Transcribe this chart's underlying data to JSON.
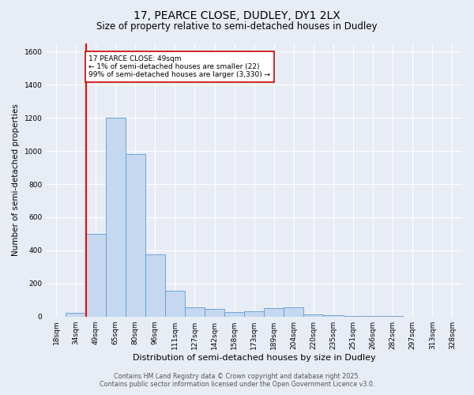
{
  "title1": "17, PEARCE CLOSE, DUDLEY, DY1 2LX",
  "title2": "Size of property relative to semi-detached houses in Dudley",
  "xlabel": "Distribution of semi-detached houses by size in Dudley",
  "ylabel": "Number of semi-detached properties",
  "categories": [
    "18sqm",
    "34sqm",
    "49sqm",
    "65sqm",
    "80sqm",
    "96sqm",
    "111sqm",
    "127sqm",
    "142sqm",
    "158sqm",
    "173sqm",
    "189sqm",
    "204sqm",
    "220sqm",
    "235sqm",
    "251sqm",
    "266sqm",
    "282sqm",
    "297sqm",
    "313sqm",
    "328sqm"
  ],
  "values": [
    0,
    22,
    500,
    1200,
    980,
    375,
    155,
    55,
    45,
    25,
    30,
    50,
    55,
    15,
    8,
    3,
    2,
    1,
    0,
    0,
    0
  ],
  "bar_color": "#c5d8f0",
  "bar_edge_color": "#5b9bd5",
  "red_line_x": 2,
  "annotation_text": "17 PEARCE CLOSE: 49sqm\n← 1% of semi-detached houses are smaller (22)\n99% of semi-detached houses are larger (3,330) →",
  "annotation_box_color": "#ffffff",
  "annotation_box_edge": "#cc0000",
  "ylim": [
    0,
    1650
  ],
  "yticks": [
    0,
    200,
    400,
    600,
    800,
    1000,
    1200,
    1400,
    1600
  ],
  "footer1": "Contains HM Land Registry data © Crown copyright and database right 2025.",
  "footer2": "Contains public sector information licensed under the Open Government Licence v3.0.",
  "bg_color": "#e8edf5",
  "plot_bg_color": "#e8edf5",
  "grid_color": "#ffffff",
  "title1_fontsize": 10,
  "title2_fontsize": 8.5,
  "axis_label_fontsize": 7.5,
  "tick_fontsize": 6.5,
  "footer_fontsize": 5.8
}
